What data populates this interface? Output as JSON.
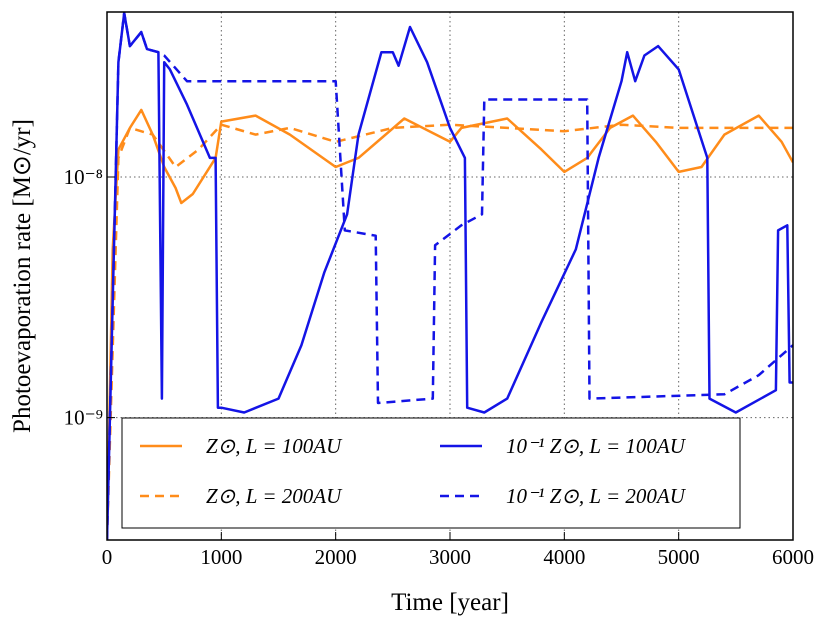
{
  "chart_data": {
    "type": "line",
    "xlabel": "Time [year]",
    "ylabel": "Photoevaporation rate [M⊙/yr]",
    "log_y": true,
    "grid": true,
    "legend": "lower center",
    "xlim": [
      0,
      6000
    ],
    "ylim": [
      3.1e-10,
      4.85e-08
    ],
    "xticks": [
      0,
      1000,
      2000,
      3000,
      4000,
      5000,
      6000
    ],
    "yticks": [
      {
        "value": 1e-09,
        "label": "10⁻⁹"
      },
      {
        "value": 1e-08,
        "label": "10⁻⁸"
      }
    ],
    "series": [
      {
        "name": "Z⊙, L = 100AU",
        "color": "#ff8c1a",
        "linestyle": "solid",
        "x": [
          0,
          50,
          100,
          200,
          300,
          400,
          500,
          600,
          650,
          750,
          950,
          1000,
          1300,
          1600,
          2000,
          2200,
          2600,
          3000,
          3100,
          3500,
          3800,
          4000,
          4200,
          4400,
          4600,
          4800,
          5000,
          5200,
          5400,
          5700,
          5900,
          6000
        ],
        "values": [
          3.1e-10,
          5e-09,
          1.3e-08,
          1.6e-08,
          1.9e-08,
          1.5e-08,
          1.1e-08,
          9e-09,
          7.8e-09,
          8.5e-09,
          1.2e-08,
          1.7e-08,
          1.8e-08,
          1.5e-08,
          1.1e-08,
          1.2e-08,
          1.75e-08,
          1.4e-08,
          1.6e-08,
          1.75e-08,
          1.3e-08,
          1.05e-08,
          1.2e-08,
          1.6e-08,
          1.8e-08,
          1.4e-08,
          1.05e-08,
          1.1e-08,
          1.5e-08,
          1.8e-08,
          1.4e-08,
          1.15e-08
        ]
      },
      {
        "name": "Z⊙, L = 200AU",
        "color": "#ff8c1a",
        "linestyle": "dashed",
        "x": [
          0,
          100,
          200,
          400,
          600,
          800,
          1000,
          1300,
          1600,
          2000,
          2500,
          3000,
          3500,
          4000,
          4500,
          5000,
          5500,
          6000
        ],
        "values": [
          3.1e-10,
          1.2e-08,
          1.6e-08,
          1.5e-08,
          1.1e-08,
          1.3e-08,
          1.65e-08,
          1.5e-08,
          1.6e-08,
          1.4e-08,
          1.6e-08,
          1.65e-08,
          1.6e-08,
          1.55e-08,
          1.65e-08,
          1.6e-08,
          1.6e-08,
          1.6e-08
        ]
      },
      {
        "name": "10⁻¹ Z⊙, L = 100AU",
        "color": "#1414e6",
        "linestyle": "solid",
        "x": [
          0,
          100,
          150,
          200,
          300,
          350,
          450,
          480,
          500,
          550,
          700,
          900,
          950,
          970,
          1000,
          1200,
          1500,
          1700,
          1900,
          2100,
          2200,
          2400,
          2500,
          2550,
          2650,
          2800,
          3000,
          3130,
          3150,
          3300,
          3500,
          3800,
          4100,
          4300,
          4500,
          4550,
          4620,
          4700,
          4820,
          5000,
          5250,
          5270,
          5500,
          5850,
          5870,
          5950,
          5970,
          6000
        ],
        "values": [
          3.1e-10,
          3e-08,
          4.8e-08,
          3.5e-08,
          4e-08,
          3.4e-08,
          3.3e-08,
          1.2e-09,
          3e-08,
          2.8e-08,
          2e-08,
          1.2e-08,
          1.2e-08,
          1.1e-09,
          1.1e-09,
          1.05e-09,
          1.2e-09,
          2e-09,
          4e-09,
          7e-09,
          1.5e-08,
          3.3e-08,
          3.3e-08,
          2.9e-08,
          4.2e-08,
          3e-08,
          1.6e-08,
          1.2e-08,
          1.1e-09,
          1.05e-09,
          1.2e-09,
          2.5e-09,
          5e-09,
          1.2e-08,
          2.5e-08,
          3.3e-08,
          2.5e-08,
          3.2e-08,
          3.5e-08,
          2.8e-08,
          1.2e-08,
          1.2e-09,
          1.05e-09,
          1.3e-09,
          6e-09,
          6.3e-09,
          1.4e-09,
          1.4e-09
        ]
      },
      {
        "name": "10⁻¹ Z⊙, L = 200AU",
        "color": "#1414e6",
        "linestyle": "dashed",
        "x": [
          0,
          100,
          150,
          200,
          300,
          350,
          450,
          500,
          700,
          2000,
          2080,
          2350,
          2370,
          2850,
          2870,
          3100,
          3280,
          3300,
          4200,
          4220,
          5400,
          5700,
          6000
        ],
        "values": [
          3.1e-10,
          3e-08,
          4.8e-08,
          3.5e-08,
          4e-08,
          3.4e-08,
          3.3e-08,
          3.2e-08,
          2.5e-08,
          2.5e-08,
          6e-09,
          5.7e-09,
          1.15e-09,
          1.2e-09,
          5.2e-09,
          6.3e-09,
          7e-09,
          2.1e-08,
          2.1e-08,
          1.2e-09,
          1.25e-09,
          1.5e-09,
          2e-09
        ]
      }
    ]
  }
}
